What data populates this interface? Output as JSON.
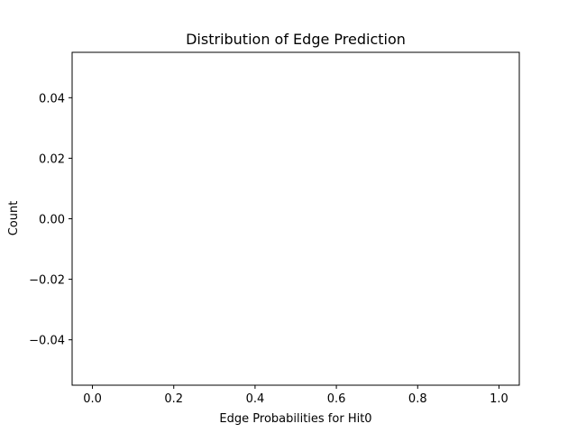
{
  "chart_data": {
    "type": "bar",
    "title": "Distribution of Edge Prediction",
    "xlabel": "Edge Probabilities for Hit0",
    "ylabel": "Count",
    "xlim": [
      -0.05,
      1.05
    ],
    "ylim": [
      -0.055,
      0.055
    ],
    "xticks": [
      {
        "value": 0.0,
        "label": "0.0"
      },
      {
        "value": 0.2,
        "label": "0.2"
      },
      {
        "value": 0.4,
        "label": "0.4"
      },
      {
        "value": 0.6,
        "label": "0.6"
      },
      {
        "value": 0.8,
        "label": "0.8"
      },
      {
        "value": 1.0,
        "label": "1.0"
      }
    ],
    "yticks": [
      {
        "value": 0.04,
        "label": "0.04"
      },
      {
        "value": 0.02,
        "label": "0.02"
      },
      {
        "value": 0.0,
        "label": "0.00"
      },
      {
        "value": -0.02,
        "label": "−0.02"
      },
      {
        "value": -0.04,
        "label": "−0.04"
      }
    ],
    "values": [],
    "grid": false,
    "axis_color": "#000000",
    "background": "#ffffff"
  }
}
